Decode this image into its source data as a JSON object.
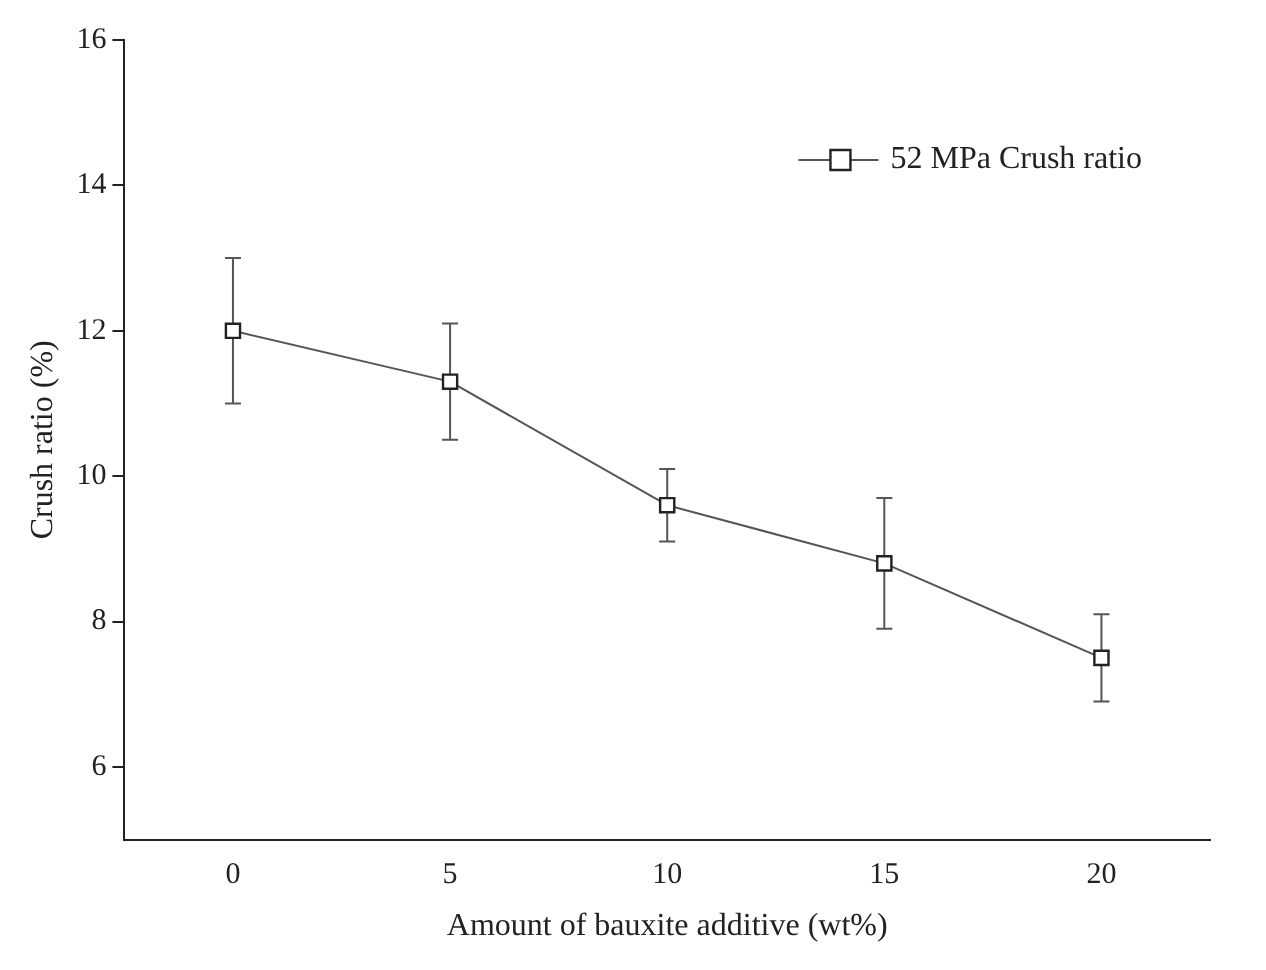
{
  "chart_data": {
    "type": "line",
    "xlabel": "Amount of bauxite additive (wt%)",
    "ylabel": "Crush ratio (%)",
    "x": [
      0,
      5,
      10,
      15,
      20
    ],
    "series": [
      {
        "name": "52 MPa Crush ratio",
        "color": "#555555",
        "values": [
          12,
          11.3,
          9.6,
          8.8,
          7.5
        ],
        "errors": [
          1,
          0.8,
          0.5,
          0.9,
          0.6
        ]
      }
    ],
    "xlim": [
      -2.5,
      22.5
    ],
    "xticks": [
      0,
      5,
      10,
      15,
      20
    ],
    "ylim": [
      5,
      16
    ],
    "yticks": [
      6,
      8,
      10,
      12,
      14,
      16
    ],
    "grid": false,
    "legend": "top right",
    "marker": "square",
    "line_style": "solid"
  }
}
